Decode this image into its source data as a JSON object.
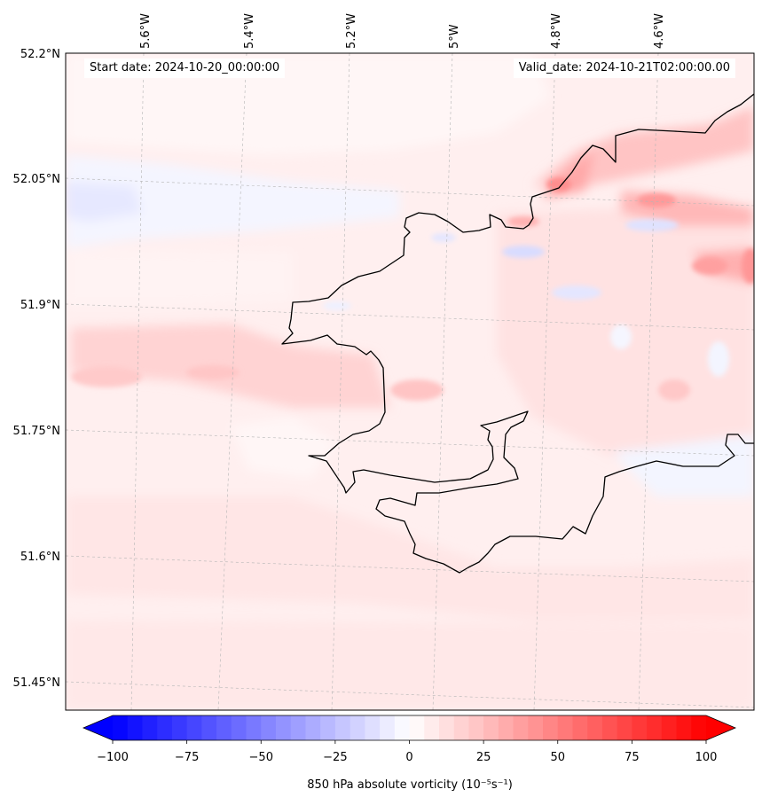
{
  "header": {
    "start_date": "Start date: 2024-10-20_00:00:00",
    "valid_date": "Valid_date: 2024-10-21T02:00:00.00"
  },
  "map": {
    "longitude_labels": [
      "5.6°W",
      "5.4°W",
      "5.2°W",
      "5°W",
      "4.8°W",
      "4.6°W"
    ],
    "latitude_labels": [
      "52.2°N",
      "52.05°N",
      "51.9°N",
      "51.75°N",
      "51.6°N",
      "51.45°N"
    ],
    "field": "850 hPa absolute vorticity",
    "gridlines": true,
    "coastline_color": "#000000"
  },
  "colorbar": {
    "min": -100,
    "max": 100,
    "tick_labels": [
      "−100",
      "−75",
      "−50",
      "−25",
      "0",
      "25",
      "50",
      "75",
      "100"
    ],
    "tick_values": [
      -100,
      -75,
      -50,
      -25,
      0,
      25,
      50,
      75,
      100
    ],
    "label": "850 hPa absolute vorticity (10⁻⁵s⁻¹)",
    "extend": "both",
    "colormap": "bwr",
    "low_color": "#0000ff",
    "mid_color": "#ffffff",
    "high_color": "#ff0000"
  }
}
